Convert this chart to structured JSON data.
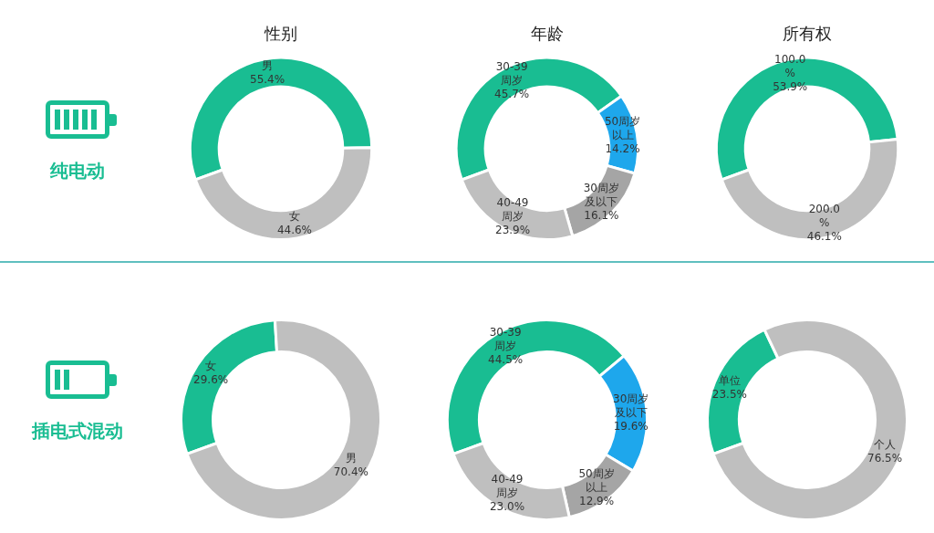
{
  "chart_data": [
    {
      "type": "other",
      "title": "纯电动"
    },
    {
      "type": "donut",
      "title": "性别",
      "categories": [
        "男",
        "女"
      ],
      "values": [
        55.4,
        44.6
      ],
      "colors": [
        "#19bd92",
        "#bfbfbf"
      ],
      "value_labels": [
        "55.4%",
        "44.6%"
      ]
    },
    {
      "type": "donut",
      "title": "年龄",
      "categories": [
        "30-39周岁",
        "50周岁以上",
        "30周岁及以下",
        "40-49周岁"
      ],
      "values": [
        45.7,
        14.2,
        16.1,
        23.9
      ],
      "colors": [
        "#19bd92",
        "#1ea7ec",
        "#a5a5a5",
        "#bfbfbf"
      ],
      "value_labels": [
        "45.7%",
        "14.2%",
        "16.1%",
        "23.9%"
      ]
    },
    {
      "type": "donut",
      "title": "所有权",
      "categories": [
        "100.0%",
        "200.0%"
      ],
      "values": [
        53.9,
        46.1
      ],
      "colors": [
        "#19bd92",
        "#bfbfbf"
      ],
      "value_labels": [
        "53.9%",
        "46.1%"
      ]
    },
    {
      "type": "other",
      "title": "插电式混动"
    },
    {
      "type": "donut",
      "categories": [
        "女",
        "男"
      ],
      "values": [
        29.6,
        70.4
      ],
      "colors": [
        "#19bd92",
        "#bfbfbf"
      ],
      "value_labels": [
        "29.6%",
        "70.4%"
      ]
    },
    {
      "type": "donut",
      "categories": [
        "30-39周岁",
        "30周岁及以下",
        "50周岁以上",
        "40-49周岁"
      ],
      "values": [
        44.5,
        19.6,
        12.9,
        23.0
      ],
      "colors": [
        "#19bd92",
        "#1ea7ec",
        "#a5a5a5",
        "#bfbfbf"
      ],
      "value_labels": [
        "44.5%",
        "19.6%",
        "12.9%",
        "23.0%"
      ]
    },
    {
      "type": "donut",
      "categories": [
        "单位",
        "个人"
      ],
      "values": [
        23.5,
        76.5
      ],
      "colors": [
        "#19bd92",
        "#bfbfbf"
      ],
      "value_labels": [
        "23.5%",
        "76.5%"
      ]
    }
  ]
}
